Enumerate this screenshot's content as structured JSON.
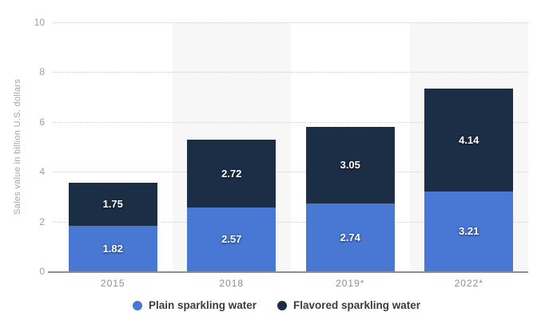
{
  "chart_data": {
    "type": "bar",
    "variant": "stacked-vertical",
    "title": "",
    "xlabel": "",
    "ylabel": "Sales value in billion U.S. dollars",
    "ylim": [
      0,
      10
    ],
    "yticks": [
      0,
      2,
      4,
      6,
      8,
      10
    ],
    "grid": "horizontal-dotted",
    "legend_position": "bottom-center",
    "categories": [
      "2015",
      "2018",
      "2019*",
      "2022*"
    ],
    "series": [
      {
        "name": "Plain sparkling water",
        "color": "#4878d3",
        "values": [
          1.82,
          2.57,
          2.74,
          3.21
        ]
      },
      {
        "name": "Flavored sparkling water",
        "color": "#1c2e45",
        "values": [
          1.75,
          2.72,
          3.05,
          4.14
        ]
      }
    ],
    "colors": {
      "plot_band_alt": "#f7f7f7",
      "gridline": "#d0d0d0",
      "axis_line": "#8f8f8f",
      "tick_text": "#9e9e9e",
      "legend_text": "#3c3c3c",
      "bar_label_text": "#ffffff"
    }
  }
}
